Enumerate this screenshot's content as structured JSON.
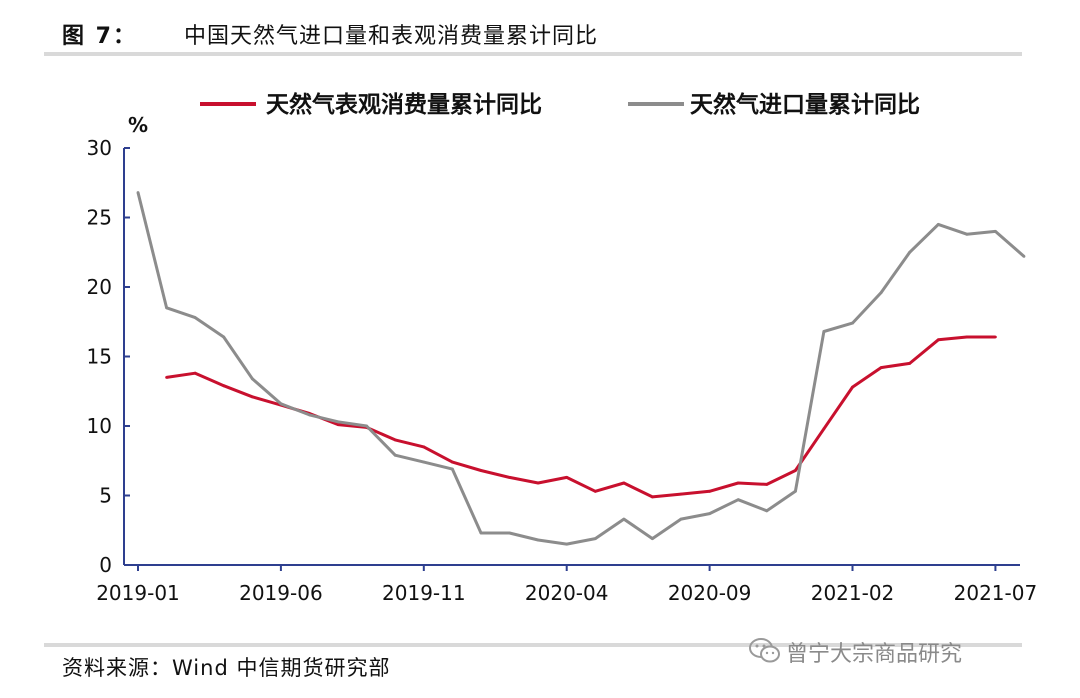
{
  "figure": {
    "number": "图 7：",
    "title": "中国天然气进口量和表观消费量累计同比"
  },
  "source": "资料来源：Wind 中信期货研究部",
  "watermark": "曾宁大宗商品研究",
  "colors": {
    "consumption": "#c8102e",
    "imports": "#8c8c8c",
    "axis": "#2e3f8f"
  },
  "chart_data": {
    "type": "line",
    "ylabel": "%",
    "ylim": [
      0,
      30
    ],
    "yticks": [
      0,
      5,
      10,
      15,
      20,
      25,
      30
    ],
    "x_tick_labels": [
      "2019-01",
      "2019-06",
      "2019-11",
      "2020-04",
      "2020-09",
      "2021-02",
      "2021-07"
    ],
    "x": [
      "2019-01",
      "2019-02",
      "2019-03",
      "2019-04",
      "2019-05",
      "2019-06",
      "2019-07",
      "2019-08",
      "2019-09",
      "2019-10",
      "2019-11",
      "2019-12",
      "2020-01",
      "2020-02",
      "2020-03",
      "2020-04",
      "2020-05",
      "2020-06",
      "2020-07",
      "2020-08",
      "2020-09",
      "2020-10",
      "2020-11",
      "2020-12",
      "2021-01",
      "2021-02",
      "2021-03",
      "2021-04",
      "2021-05",
      "2021-06",
      "2021-07",
      "2021-08"
    ],
    "legend_position": "top",
    "series": [
      {
        "name": "天然气表观消费量累计同比",
        "color_key": "consumption",
        "values": [
          null,
          13.5,
          13.8,
          12.9,
          12.1,
          11.5,
          10.9,
          10.1,
          9.9,
          9.0,
          8.5,
          7.4,
          6.8,
          6.3,
          5.9,
          6.3,
          5.3,
          5.9,
          4.9,
          5.1,
          5.3,
          5.9,
          5.8,
          6.8,
          9.8,
          12.8,
          14.2,
          14.5,
          16.2,
          16.4,
          16.4,
          null
        ]
      },
      {
        "name": "天然气进口量累计同比",
        "color_key": "imports",
        "values": [
          26.8,
          18.5,
          17.8,
          16.4,
          13.4,
          11.6,
          10.8,
          10.3,
          10.0,
          7.9,
          7.4,
          6.9,
          2.3,
          2.3,
          1.8,
          1.5,
          1.9,
          3.3,
          1.9,
          3.3,
          3.7,
          4.7,
          3.9,
          5.3,
          16.8,
          17.4,
          19.6,
          22.5,
          24.5,
          23.8,
          24.0,
          22.2
        ]
      }
    ]
  }
}
